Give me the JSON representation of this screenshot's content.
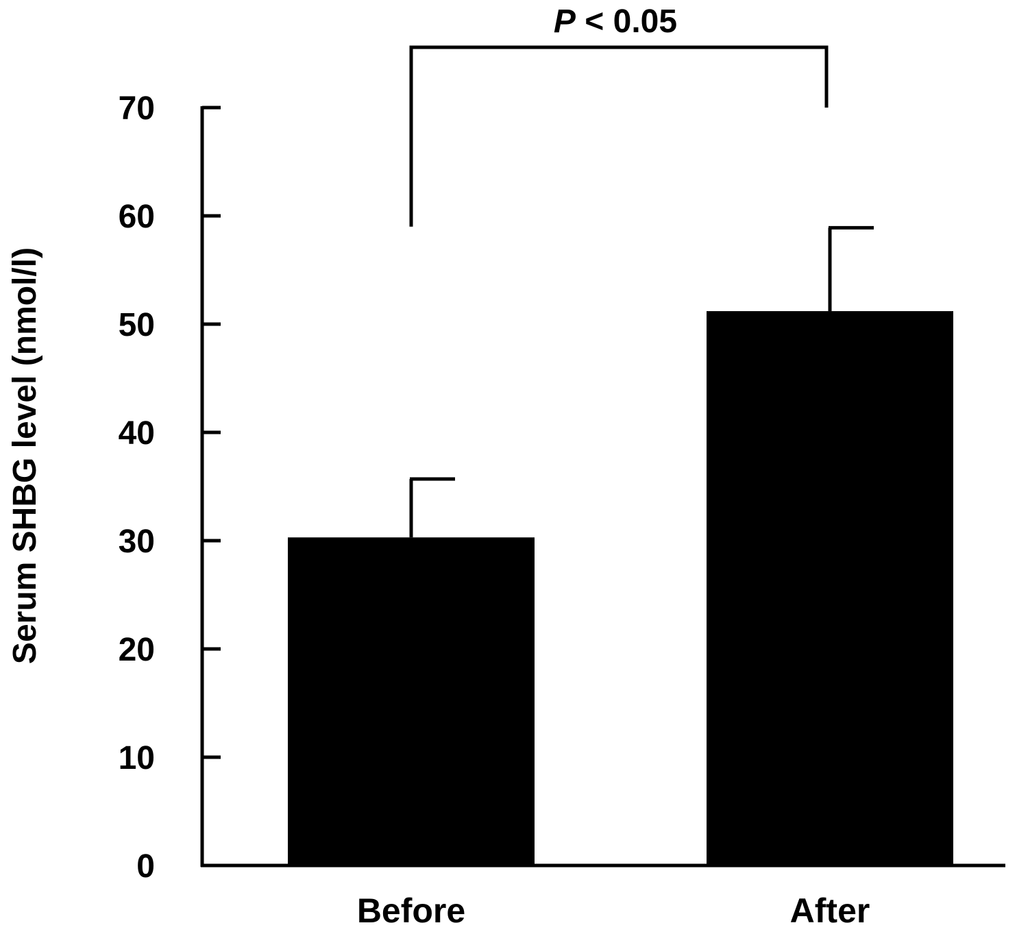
{
  "chart_data": {
    "type": "bar",
    "categories": [
      "Before",
      "After"
    ],
    "values": [
      30.3,
      51.2
    ],
    "error_upper": [
      35.7,
      58.9
    ],
    "ylabel": "Serum SHBG level (nmol/l)",
    "ylim": [
      0,
      70
    ],
    "yticks": [
      "0",
      "10",
      "20",
      "30",
      "40",
      "50",
      "60",
      "70"
    ],
    "grid": false,
    "bar_color": "#000000",
    "annotation": {
      "p_symbol": "P",
      "relation": " < 0.05",
      "compares": [
        "Before",
        "After"
      ]
    }
  }
}
